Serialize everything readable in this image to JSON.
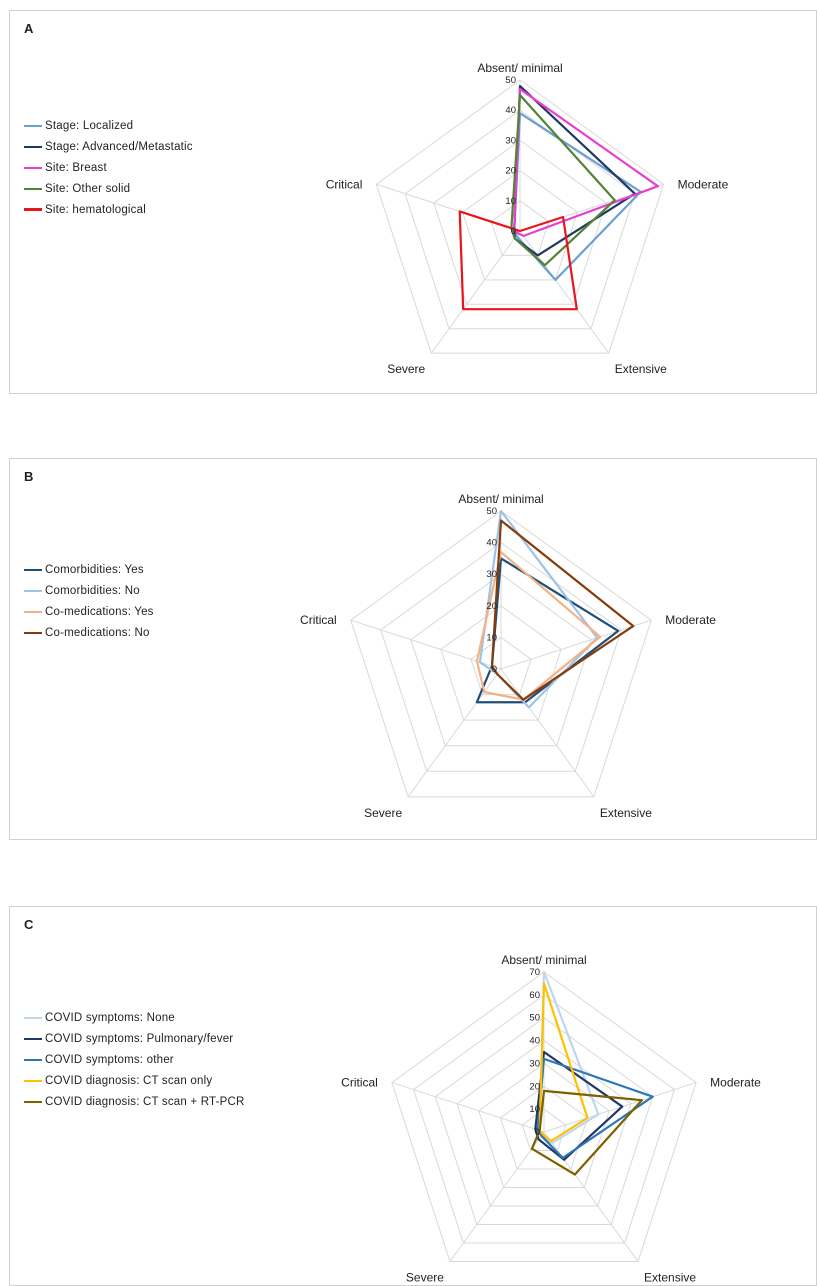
{
  "chart_data": [
    {
      "type": "radar",
      "panel_label": "A",
      "axes": [
        "Absent/ minimal",
        "Moderate",
        "Extensive",
        "Severe",
        "Critical"
      ],
      "ticks": [
        "0",
        "10",
        "20",
        "30",
        "40",
        "50"
      ],
      "range": [
        0,
        50
      ],
      "legend_position": "left",
      "grid": true,
      "series": [
        {
          "name": "Stage: Localized",
          "color": "#6a9fd4",
          "values": [
            39,
            42,
            20,
            2,
            2
          ]
        },
        {
          "name": "Stage: Advanced/Metastatic",
          "color": "#1f3864",
          "values": [
            48,
            40,
            10,
            3,
            2
          ]
        },
        {
          "name": "Site: Breast",
          "color": "#e83fd0",
          "values": [
            47,
            48,
            2,
            1,
            2
          ]
        },
        {
          "name": "Site: Other solid",
          "color": "#548235",
          "values": [
            45,
            33,
            14,
            3,
            3
          ]
        },
        {
          "name": "Site: hematological",
          "color": "#e8151b",
          "values": [
            0,
            15,
            32,
            32,
            21
          ]
        }
      ]
    },
    {
      "type": "radar",
      "panel_label": "B",
      "axes": [
        "Absent/ minimal",
        "Moderate",
        "Extensive",
        "Severe",
        "Critical"
      ],
      "ticks": [
        "0",
        "10",
        "20",
        "30",
        "40",
        "50"
      ],
      "range": [
        0,
        50
      ],
      "legend_position": "left",
      "grid": true,
      "series": [
        {
          "name": "Comorbidities: Yes",
          "color": "#1f4e79",
          "values": [
            35,
            39,
            13,
            13,
            3
          ]
        },
        {
          "name": "Comorbidities: No",
          "color": "#9dc3e6",
          "values": [
            50,
            32,
            15,
            2,
            7
          ]
        },
        {
          "name": "Co-medications: Yes",
          "color": "#f4b183",
          "values": [
            37,
            33,
            12,
            9,
            8
          ]
        },
        {
          "name": "Co-medications: No",
          "color": "#843c0c",
          "values": [
            47,
            44,
            12,
            2,
            3
          ]
        }
      ]
    },
    {
      "type": "radar",
      "panel_label": "C",
      "axes": [
        "Absent/ minimal",
        "Moderate",
        "Extensive",
        "Severe",
        "Critical"
      ],
      "ticks": [
        "0",
        "10",
        "20",
        "30",
        "40",
        "50",
        "60",
        "70"
      ],
      "range": [
        0,
        70
      ],
      "legend_position": "left",
      "grid": true,
      "series": [
        {
          "name": "COVID symptoms: None",
          "color": "#bdd7ee",
          "values": [
            70,
            25,
            6,
            2,
            2
          ]
        },
        {
          "name": "COVID symptoms: Pulmonary/fever",
          "color": "#203864",
          "values": [
            35,
            36,
            15,
            4,
            4
          ]
        },
        {
          "name": "COVID symptoms: other",
          "color": "#2e75b6",
          "values": [
            32,
            50,
            14,
            2,
            3
          ]
        },
        {
          "name": "COVID diagnosis: CT scan only",
          "color": "#ffc000",
          "values": [
            65,
            20,
            5,
            1,
            2
          ]
        },
        {
          "name": "COVID diagnosis: CT scan + RT-PCR",
          "color": "#7f6000",
          "values": [
            18,
            45,
            23,
            9,
            2
          ]
        }
      ]
    }
  ]
}
